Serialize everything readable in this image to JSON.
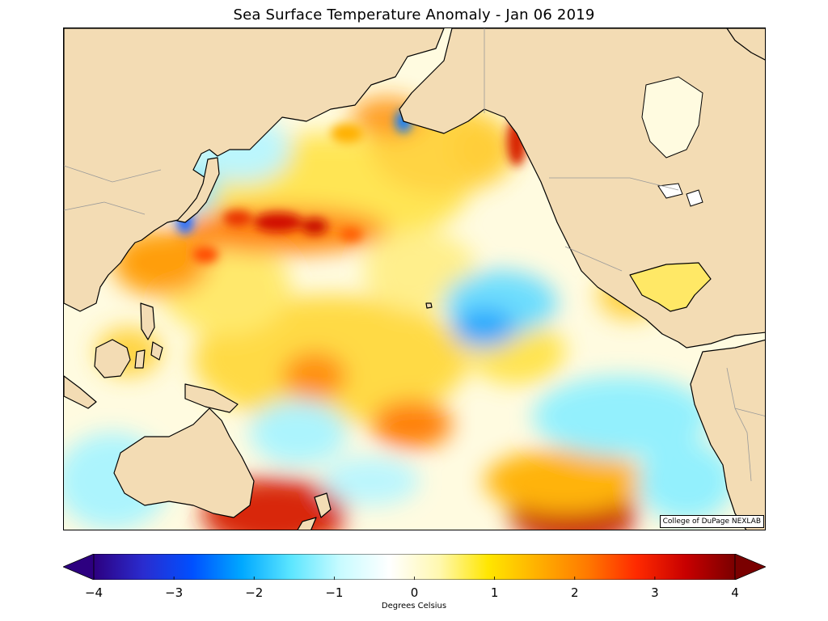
{
  "title": "Sea Surface Temperature Anomaly - Jan 06 2019",
  "credit": "College of DuPage NEXLAB",
  "colorbar": {
    "label": "Degrees Celsius",
    "min": -4,
    "max": 4,
    "ticks": [
      "−4",
      "−3",
      "−2",
      "−1",
      "0",
      "1",
      "2",
      "3",
      "4"
    ],
    "colors": [
      "#2d0080",
      "#2a2ccf",
      "#0050ff",
      "#00a8ff",
      "#5ce6ff",
      "#c8fbff",
      "#ffffff",
      "#fff8b0",
      "#ffe600",
      "#ffb000",
      "#ff7a00",
      "#ff2a00",
      "#c80000",
      "#7a0000"
    ],
    "extend": "both"
  },
  "map": {
    "land_color": "#f3dcb4",
    "coastline_color": "#000000",
    "border_color": "#999999"
  }
}
